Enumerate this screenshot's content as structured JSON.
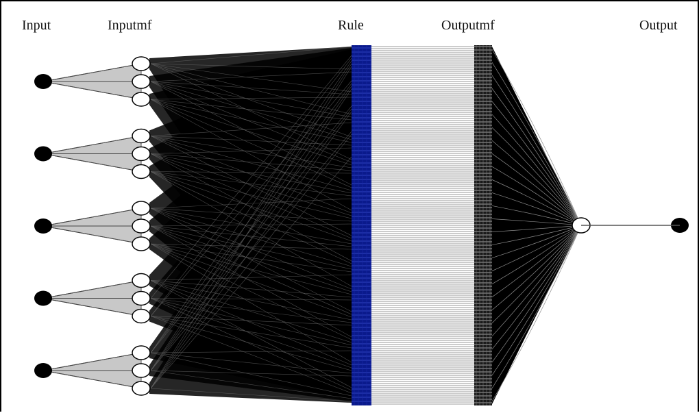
{
  "labels": {
    "input": "Input",
    "inputmf": "Inputmf",
    "rule": "Rule",
    "outputmf": "Outputmf",
    "output": "Output"
  },
  "network": {
    "inputs": 5,
    "mfs_per_input": 3,
    "outputs": 1
  },
  "colors": {
    "node_black": "#000000",
    "mf_fan": "#c8c8c8",
    "rule_layer": "#0a1a8c",
    "outputmf_lines": "#9a9a9a",
    "background": "#ffffff"
  }
}
